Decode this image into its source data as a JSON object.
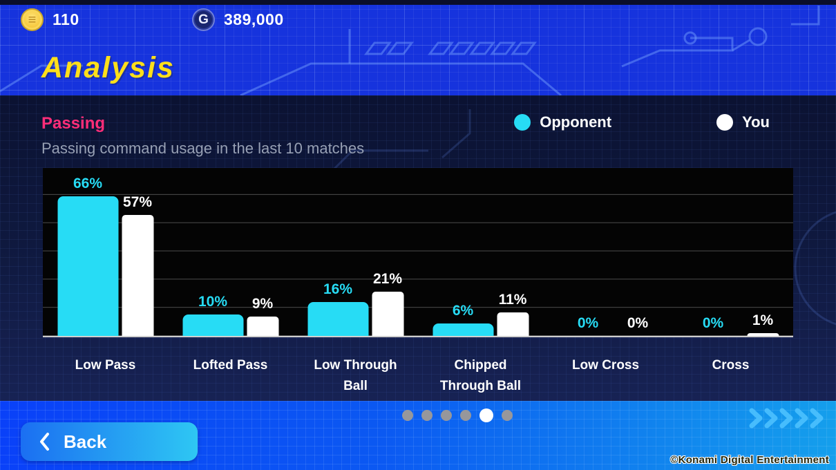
{
  "currency": {
    "coin_amount": "110",
    "coin_symbol": "≡",
    "gp_amount": "389,000",
    "gp_symbol": "G"
  },
  "page": {
    "title": "Analysis"
  },
  "panel": {
    "section_title": "Passing",
    "subtitle": "Passing command usage in the last 10 matches",
    "legend": [
      {
        "label": "Opponent",
        "color": "#27dcf5"
      },
      {
        "label": "You",
        "color": "#ffffff"
      }
    ]
  },
  "chart_data": {
    "type": "bar",
    "title": "Passing command usage in the last 10 matches",
    "categories": [
      "Low Pass",
      "Lofted Pass",
      "Low Through\nBall",
      "Chipped\nThrough Ball",
      "Low Cross",
      "Cross"
    ],
    "series": [
      {
        "name": "Opponent",
        "color": "#27dcf5",
        "values": [
          66,
          10,
          16,
          6,
          0,
          0
        ]
      },
      {
        "name": "You",
        "color": "#ffffff",
        "values": [
          57,
          9,
          21,
          11,
          0,
          1
        ]
      }
    ],
    "value_suffix": "%",
    "xlabel": "",
    "ylabel": "",
    "ylim": [
      0,
      80
    ],
    "grid": true,
    "grid_divisions": 6,
    "plot_background": "#040404",
    "legend_position": "top-right"
  },
  "pagination": {
    "total": 6,
    "active_index": 4
  },
  "bottom": {
    "back_label": "Back",
    "copyright": "©Konami Digital Entertainment"
  },
  "colors": {
    "accent_cyan": "#27dcf5",
    "accent_pink": "#ff2d78",
    "title_yellow": "#ffdf1a",
    "header_blue": "#1633dd",
    "panel_navy": "#0d1538",
    "bottom_blue_left": "#0a41f8",
    "bottom_blue_right": "#149fec"
  }
}
